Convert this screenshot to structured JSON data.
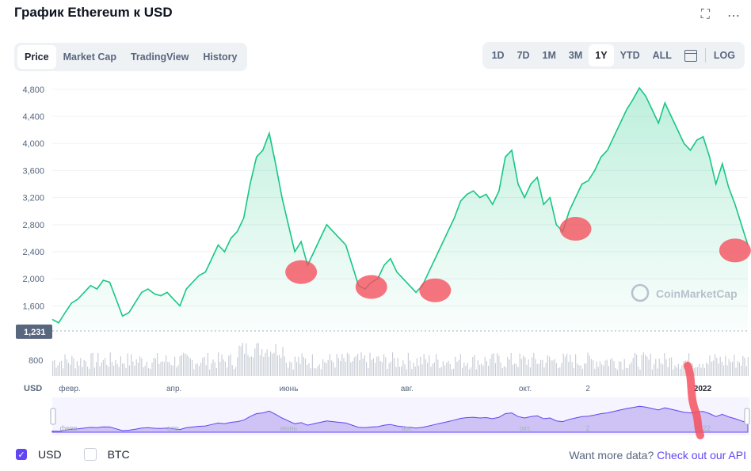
{
  "header": {
    "title": "График Ethereum к USD",
    "expand_icon": "expand-icon",
    "more_icon": "more-icon"
  },
  "tabs": [
    "Price",
    "Market Cap",
    "TradingView",
    "History"
  ],
  "active_tab": "Price",
  "ranges": [
    "1D",
    "7D",
    "1M",
    "3M",
    "1Y",
    "YTD",
    "ALL"
  ],
  "active_range": "1Y",
  "log_label": "LOG",
  "calendar_icon": "calendar-icon",
  "footer": {
    "usd_label": "USD",
    "btc_label": "BTC",
    "usd_checked": true,
    "btc_checked": false,
    "more_data_text": "Want more data?",
    "api_link": "Check out our API"
  },
  "watermark": "CoinMarketCap",
  "colors": {
    "line": "#16c784",
    "fill": "#16c784",
    "accent": "#6145f5",
    "volume": "#c9ced6",
    "marker": "#f5515f",
    "navigator_fill": "#cfc3f5"
  },
  "chart_data": {
    "type": "area",
    "currency_label": "USD",
    "y_ticks": [
      "4,800",
      "4,400",
      "4,000",
      "3,600",
      "3,200",
      "2,800",
      "2,400",
      "2,000",
      "1,600"
    ],
    "y_tick_values": [
      4800,
      4400,
      4000,
      3600,
      3200,
      2800,
      2400,
      2000,
      1600
    ],
    "ylim": [
      1231,
      4950
    ],
    "baseline_label": "1,231",
    "baseline_value": 1231,
    "volume_tick": "800",
    "x_ticks": [
      "февр.",
      "апр.",
      "июнь",
      "авг.",
      "окт.",
      "2",
      "2022"
    ],
    "x_tick_positions": [
      0.025,
      0.175,
      0.34,
      0.51,
      0.68,
      0.77,
      0.935
    ],
    "series": [
      {
        "values": [
          1400,
          1350,
          1500,
          1640,
          1700,
          1800,
          1900,
          1850,
          1980,
          1950,
          1700,
          1450,
          1500,
          1650,
          1800,
          1850,
          1780,
          1750,
          1800,
          1700,
          1600,
          1850,
          1950,
          2050,
          2100,
          2300,
          2500,
          2400,
          2600,
          2700,
          2900,
          3400,
          3800,
          3900,
          4150,
          3700,
          3200,
          2800,
          2400,
          2550,
          2200,
          2400,
          2600,
          2800,
          2700,
          2600,
          2500,
          2200,
          1900,
          1850,
          1950,
          2000,
          2200,
          2300,
          2100,
          2000,
          1900,
          1800,
          1900,
          2100,
          2300,
          2500,
          2700,
          2900,
          3150,
          3250,
          3300,
          3200,
          3250,
          3100,
          3300,
          3800,
          3900,
          3400,
          3200,
          3400,
          3500,
          3100,
          3200,
          2800,
          2700,
          3000,
          3200,
          3400,
          3450,
          3600,
          3800,
          3900,
          4100,
          4300,
          4500,
          4650,
          4820,
          4700,
          4500,
          4300,
          4600,
          4400,
          4200,
          4000,
          3900,
          4050,
          4100,
          3800,
          3400,
          3700,
          3350,
          3100,
          2800,
          2500
        ]
      }
    ],
    "markers": [
      {
        "label": "marker-1",
        "x_index": 39,
        "value": 2100
      },
      {
        "label": "marker-2",
        "x_index": 50,
        "value": 1880
      },
      {
        "label": "marker-3",
        "x_index": 60,
        "value": 1830
      },
      {
        "label": "marker-4",
        "x_index": 82,
        "value": 2740
      },
      {
        "label": "marker-5",
        "x_index": 107,
        "value": 2420
      }
    ]
  }
}
